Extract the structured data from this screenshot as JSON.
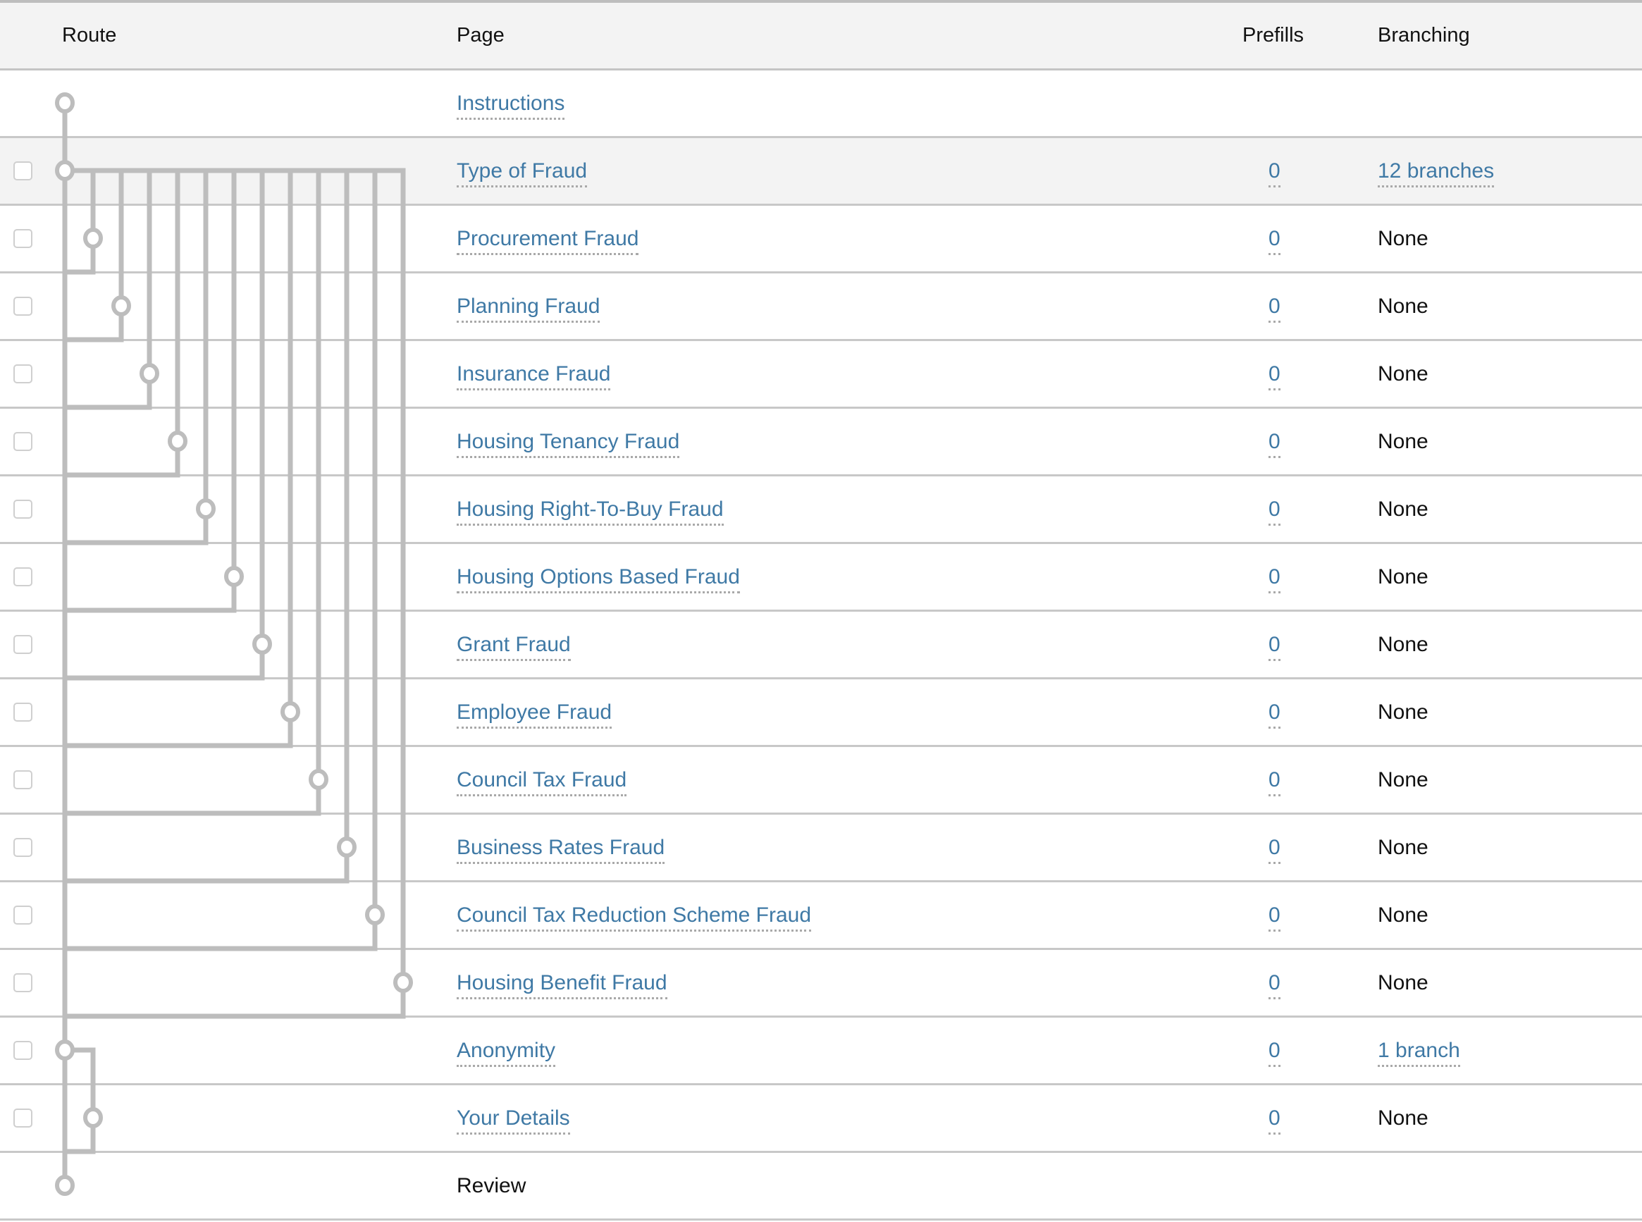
{
  "columns": {
    "route": "Route",
    "page": "Page",
    "prefills": "Prefills",
    "branching": "Branching"
  },
  "colors": {
    "link": "#3f79a5",
    "route_line": "#bdbdbd",
    "highlight_row": "#f3f3f3"
  },
  "rows": [
    {
      "page": "Instructions",
      "page_link": true,
      "checkbox": false,
      "prefills": null,
      "branching": null,
      "branching_link": false,
      "route_level": 0
    },
    {
      "page": "Type of Fraud",
      "page_link": true,
      "checkbox": true,
      "prefills": "0",
      "branching": "12 branches",
      "branching_link": true,
      "route_level": 0,
      "highlighted": true
    },
    {
      "page": "Procurement Fraud",
      "page_link": true,
      "checkbox": true,
      "prefills": "0",
      "branching": "None",
      "branching_link": false,
      "route_level": 1,
      "branch_parent": 1
    },
    {
      "page": "Planning Fraud",
      "page_link": true,
      "checkbox": true,
      "prefills": "0",
      "branching": "None",
      "branching_link": false,
      "route_level": 2,
      "branch_parent": 1
    },
    {
      "page": "Insurance Fraud",
      "page_link": true,
      "checkbox": true,
      "prefills": "0",
      "branching": "None",
      "branching_link": false,
      "route_level": 3,
      "branch_parent": 1
    },
    {
      "page": "Housing Tenancy Fraud",
      "page_link": true,
      "checkbox": true,
      "prefills": "0",
      "branching": "None",
      "branching_link": false,
      "route_level": 4,
      "branch_parent": 1
    },
    {
      "page": "Housing Right-To-Buy Fraud",
      "page_link": true,
      "checkbox": true,
      "prefills": "0",
      "branching": "None",
      "branching_link": false,
      "route_level": 5,
      "branch_parent": 1
    },
    {
      "page": "Housing Options Based Fraud",
      "page_link": true,
      "checkbox": true,
      "prefills": "0",
      "branching": "None",
      "branching_link": false,
      "route_level": 6,
      "branch_parent": 1
    },
    {
      "page": "Grant Fraud",
      "page_link": true,
      "checkbox": true,
      "prefills": "0",
      "branching": "None",
      "branching_link": false,
      "route_level": 7,
      "branch_parent": 1
    },
    {
      "page": "Employee Fraud",
      "page_link": true,
      "checkbox": true,
      "prefills": "0",
      "branching": "None",
      "branching_link": false,
      "route_level": 8,
      "branch_parent": 1
    },
    {
      "page": "Council Tax Fraud",
      "page_link": true,
      "checkbox": true,
      "prefills": "0",
      "branching": "None",
      "branching_link": false,
      "route_level": 9,
      "branch_parent": 1
    },
    {
      "page": "Business Rates Fraud",
      "page_link": true,
      "checkbox": true,
      "prefills": "0",
      "branching": "None",
      "branching_link": false,
      "route_level": 10,
      "branch_parent": 1
    },
    {
      "page": "Council Tax Reduction Scheme Fraud",
      "page_link": true,
      "checkbox": true,
      "prefills": "0",
      "branching": "None",
      "branching_link": false,
      "route_level": 11,
      "branch_parent": 1
    },
    {
      "page": "Housing Benefit Fraud",
      "page_link": true,
      "checkbox": true,
      "prefills": "0",
      "branching": "None",
      "branching_link": false,
      "route_level": 12,
      "branch_parent": 1
    },
    {
      "page": "Anonymity",
      "page_link": true,
      "checkbox": true,
      "prefills": "0",
      "branching": "1 branch",
      "branching_link": true,
      "route_level": 0
    },
    {
      "page": "Your Details",
      "page_link": true,
      "checkbox": true,
      "prefills": "0",
      "branching": "None",
      "branching_link": false,
      "route_level": 1,
      "branch_parent": 14
    },
    {
      "page": "Review",
      "page_link": false,
      "checkbox": false,
      "prefills": null,
      "branching": null,
      "branching_link": false,
      "route_level": 0
    }
  ]
}
